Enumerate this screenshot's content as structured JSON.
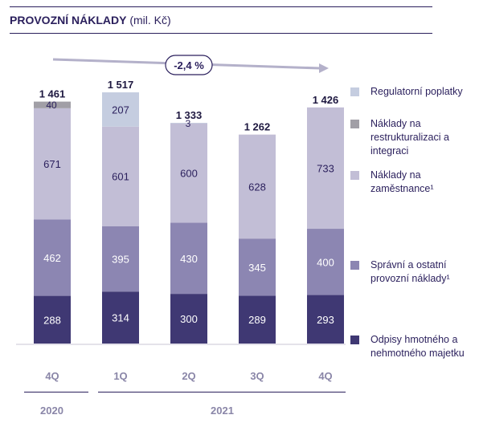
{
  "title": {
    "bold": "PROVOZNÍ NÁKLADY",
    "rest": " (mil. Kč)"
  },
  "change_label": "-2,4 %",
  "years": [
    "2020",
    "2021"
  ],
  "colors": {
    "regulatory": "#c5cde0",
    "restructuring": "#a19fa6",
    "staff": "#c2bed6",
    "admin": "#8c86b2",
    "depreciation": "#3f3873",
    "arrow": "#b4b1ca",
    "text_dark": "#2a1f5c",
    "axis_label": "#8a86a8"
  },
  "legend": [
    {
      "key": "regulatory",
      "label": "Regulatorní poplatky"
    },
    {
      "key": "restructuring",
      "label": "Náklady na restrukturalizaci a integraci"
    },
    {
      "key": "staff",
      "label": "Náklady na zaměstnance¹"
    },
    {
      "key": "admin",
      "label": "Správní a ostatní provozní náklady¹"
    },
    {
      "key": "depreciation",
      "label": "Odpisy hmotného a nehmotného majetku"
    }
  ],
  "chart_data": {
    "type": "bar",
    "stacked": true,
    "categories": [
      "4Q",
      "1Q",
      "2Q",
      "3Q",
      "4Q"
    ],
    "category_years": [
      "2020",
      "2021",
      "2021",
      "2021",
      "2021"
    ],
    "totals": [
      "1 461",
      "1 517",
      "1 333",
      "1 262",
      "1 426"
    ],
    "series": [
      {
        "name": "Odpisy hmotného a nehmotného majetku",
        "key": "depreciation",
        "values": [
          288,
          314,
          300,
          289,
          293
        ]
      },
      {
        "name": "Správní a ostatní provozní náklady¹",
        "key": "admin",
        "values": [
          462,
          395,
          430,
          345,
          400
        ]
      },
      {
        "name": "Náklady na zaměstnance¹",
        "key": "staff",
        "values": [
          671,
          601,
          600,
          628,
          733
        ]
      },
      {
        "name": "Náklady na restrukturalizaci a integraci",
        "key": "restructuring",
        "values": [
          40,
          0,
          0,
          0,
          0
        ]
      },
      {
        "name": "Regulatorní poplatky",
        "key": "regulatory",
        "values": [
          0,
          207,
          3,
          0,
          0
        ]
      }
    ],
    "ylim": [
      0,
      1517
    ],
    "grid": false,
    "legend_position": "right"
  }
}
